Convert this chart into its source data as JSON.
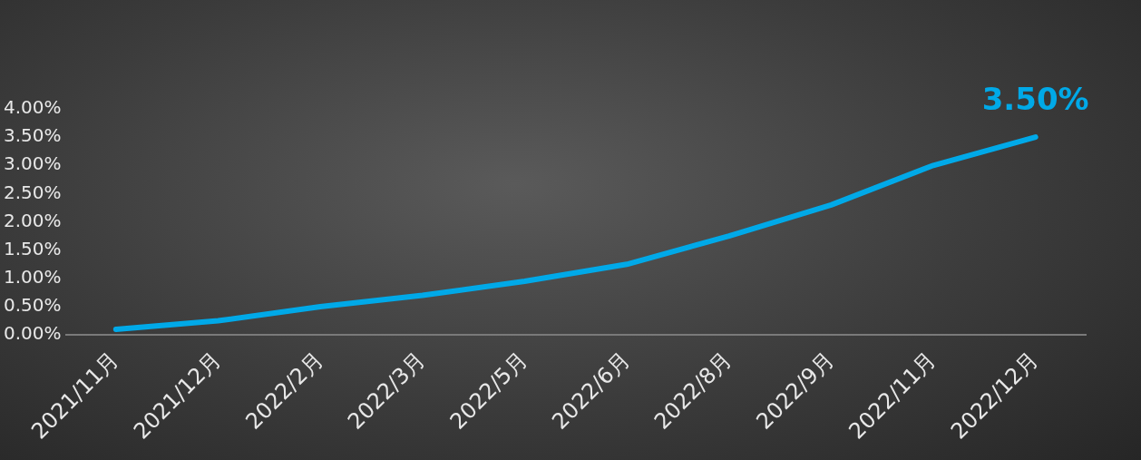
{
  "chart_data": {
    "type": "line",
    "categories": [
      "2021/11月",
      "2021/12月",
      "2022/2月",
      "2022/3月",
      "2022/5月",
      "2022/6月",
      "2022/8月",
      "2022/9月",
      "2022/11月",
      "2022/12月"
    ],
    "series": [
      {
        "color": "#00a9e8",
        "values": [
          0.1,
          0.25,
          0.5,
          0.7,
          0.95,
          1.25,
          1.75,
          2.3,
          3.0,
          3.5
        ],
        "value_labels": [
          null,
          null,
          null,
          null,
          null,
          null,
          null,
          null,
          null,
          "3.50%"
        ]
      }
    ],
    "ylim": [
      0,
      4
    ],
    "yticks": [
      {
        "value": 0,
        "label": "0.00%"
      },
      {
        "value": 0.5,
        "label": "0.50%"
      },
      {
        "value": 1,
        "label": "1.00%"
      },
      {
        "value": 1.5,
        "label": "1.50%"
      },
      {
        "value": 2,
        "label": "2.00%"
      },
      {
        "value": 2.5,
        "label": "2.50%"
      },
      {
        "value": 3,
        "label": "3.00%"
      },
      {
        "value": 3.5,
        "label": "3.50%"
      },
      {
        "value": 4,
        "label": "4.00%"
      }
    ],
    "grid": false,
    "legend": false,
    "marker": "none",
    "line_style": "solid"
  }
}
